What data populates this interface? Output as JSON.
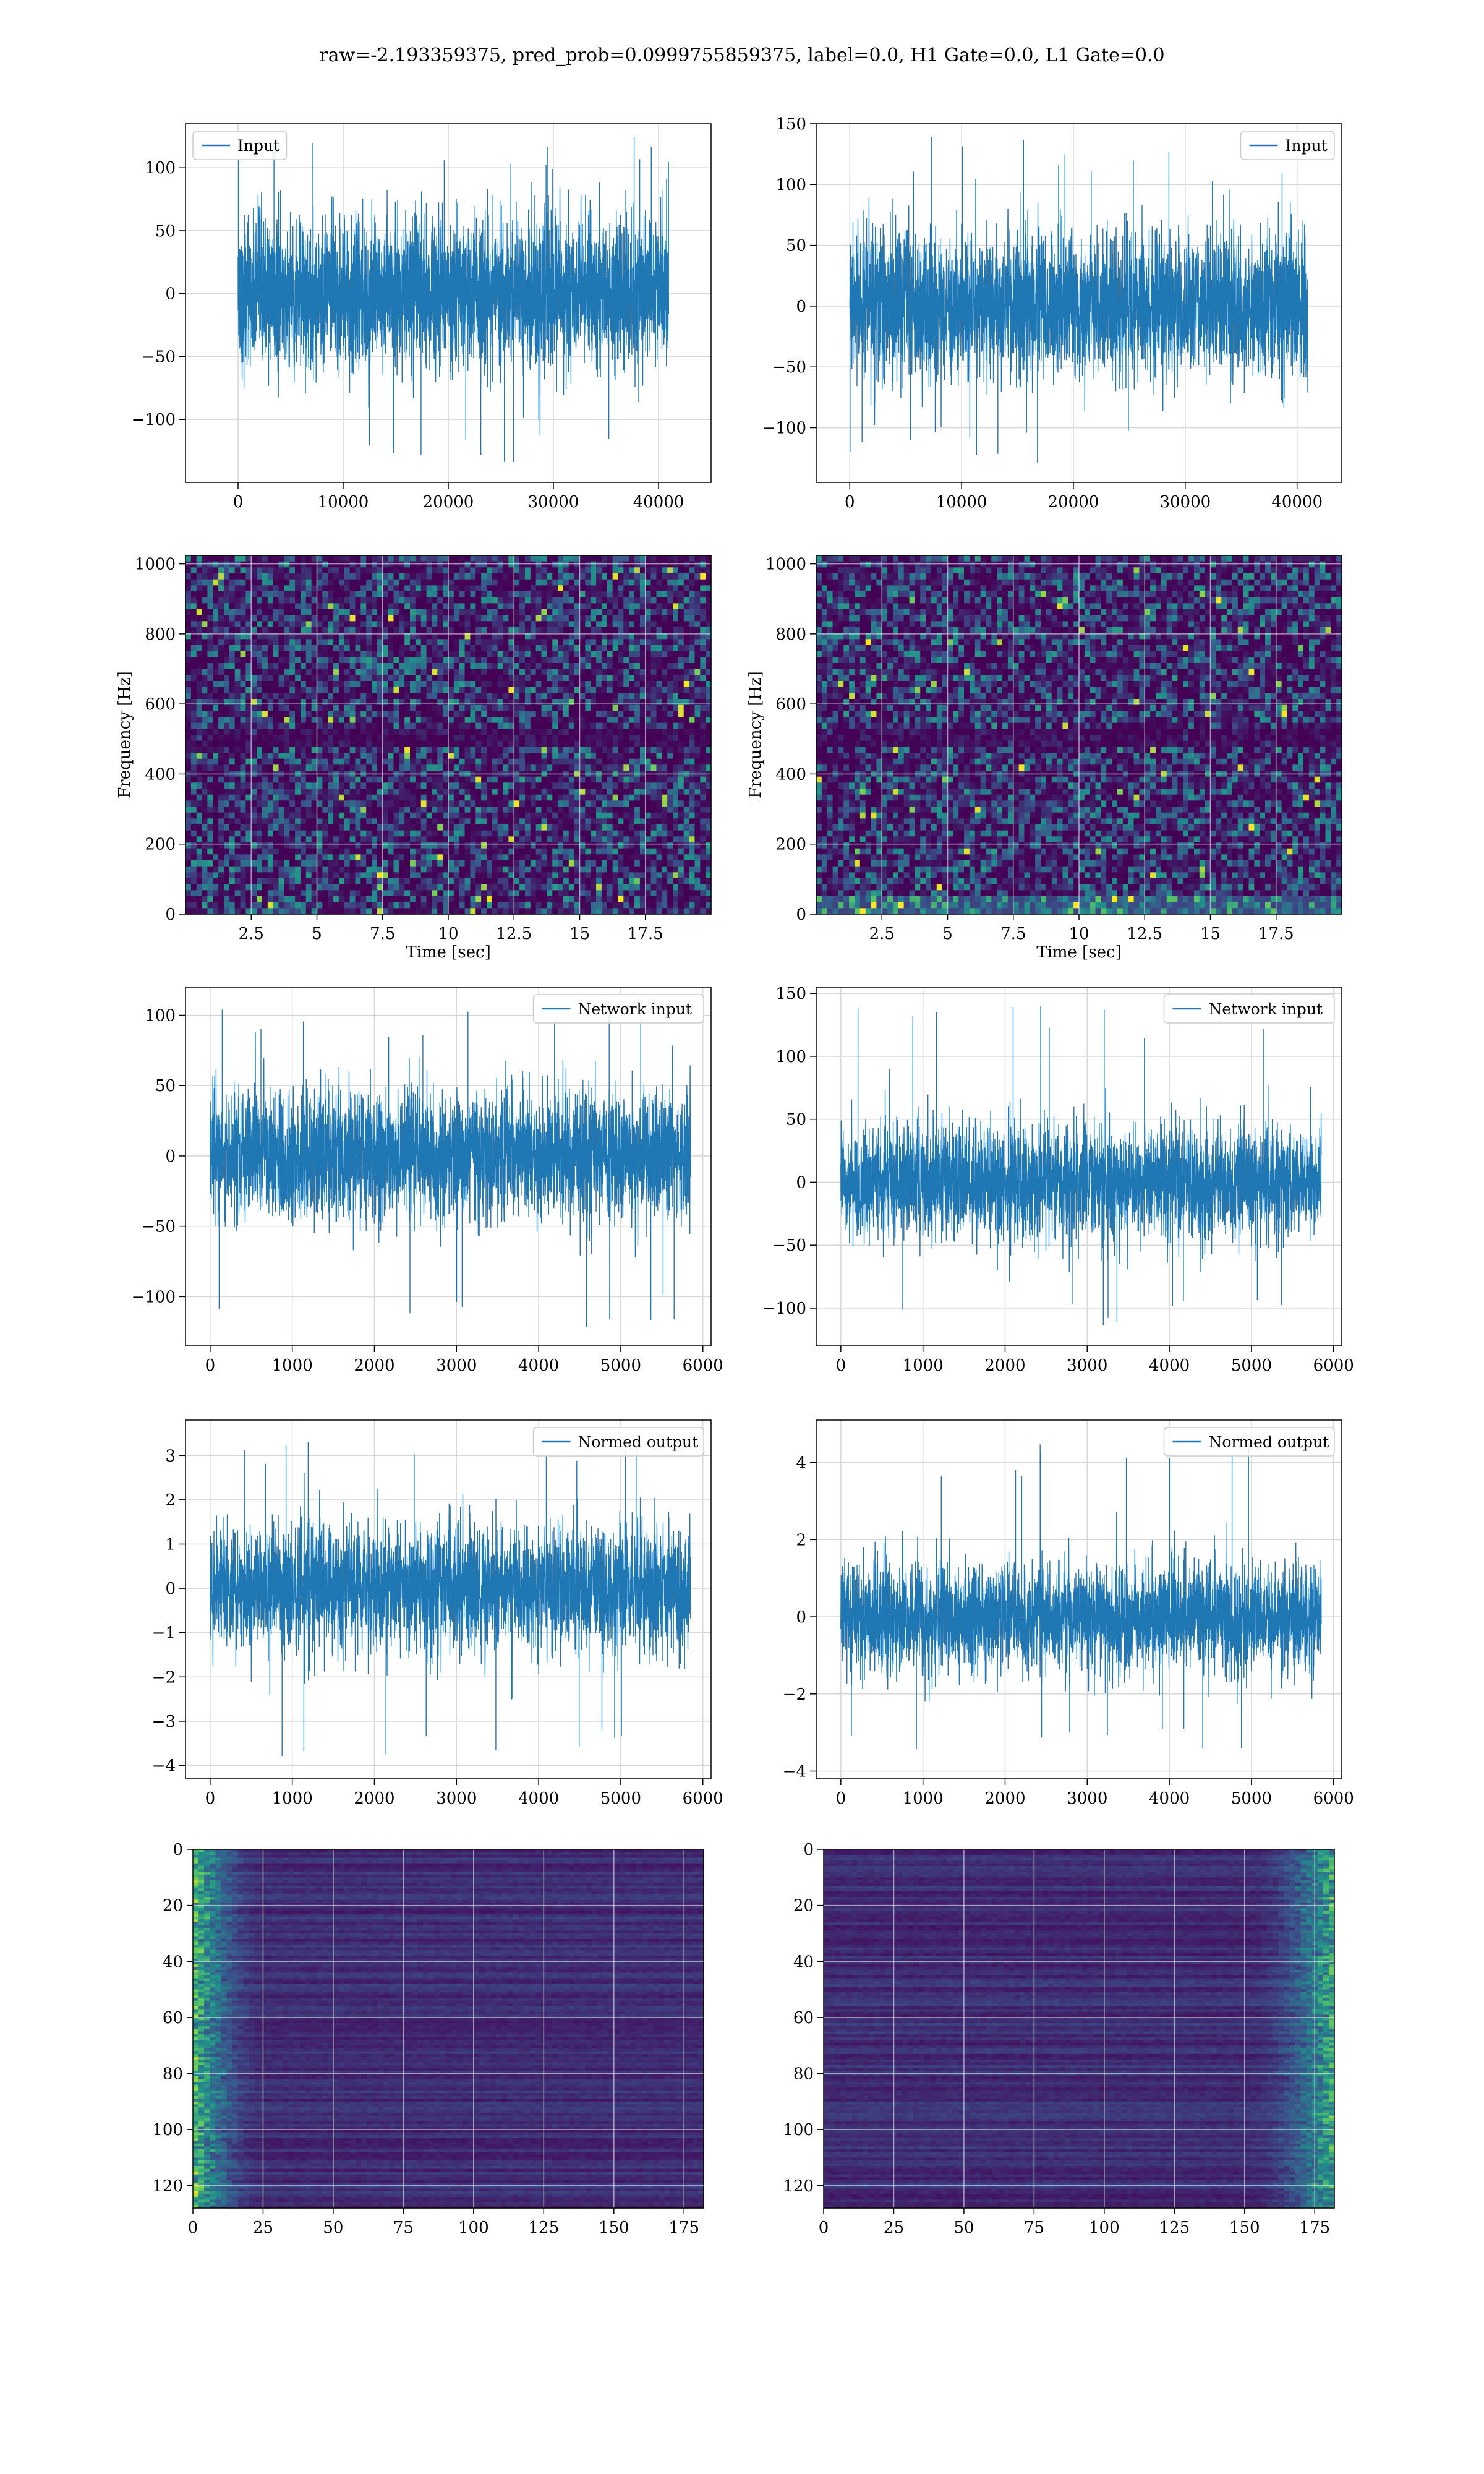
{
  "title": "raw=-2.193359375, pred_prob=0.0999755859375, label=0.0, H1 Gate=0.0, L1 Gate=0.0",
  "colors": {
    "line": "#1f77b4",
    "grid": "#d9d9d9",
    "heat_low": "#440154",
    "heat_high": "#fde725"
  },
  "chart_data": [
    {
      "type": "line",
      "xlabel": "",
      "ylabel": "",
      "legend": "upper-left",
      "series": [
        {
          "name": "Input"
        }
      ],
      "xlim": [
        -5000,
        45000
      ],
      "ylim": [
        -150,
        135
      ],
      "xticks": [
        0,
        10000,
        20000,
        30000,
        40000
      ],
      "yticks": [
        -100,
        -50,
        0,
        50,
        100
      ],
      "n_samples": 40960,
      "envelope": [
        -60,
        60
      ],
      "spikes": [
        -134,
        125
      ]
    },
    {
      "type": "line",
      "xlabel": "",
      "ylabel": "",
      "legend": "upper-right",
      "series": [
        {
          "name": "Input"
        }
      ],
      "xlim": [
        -3000,
        44000
      ],
      "ylim": [
        -145,
        150
      ],
      "xticks": [
        0,
        10000,
        20000,
        30000,
        40000
      ],
      "yticks": [
        -100,
        -50,
        0,
        50,
        100,
        150
      ],
      "n_samples": 40960,
      "envelope": [
        -60,
        60
      ],
      "spikes": [
        -130,
        140
      ]
    },
    {
      "type": "heatmap",
      "xlabel": "Time [sec]",
      "ylabel": "Frequency [Hz]",
      "xlim": [
        0,
        20
      ],
      "ylim": [
        0,
        1024
      ],
      "xticks": [
        2.5,
        5.0,
        7.5,
        10.0,
        12.5,
        15.0,
        17.5
      ],
      "yticks": [
        0,
        200,
        400,
        600,
        800,
        1000
      ]
    },
    {
      "type": "heatmap",
      "xlabel": "Time [sec]",
      "ylabel": "Frequency [Hz]",
      "xlim": [
        0,
        20
      ],
      "ylim": [
        0,
        1024
      ],
      "xticks": [
        2.5,
        5.0,
        7.5,
        10.0,
        12.5,
        15.0,
        17.5
      ],
      "yticks": [
        0,
        200,
        400,
        600,
        800,
        1000
      ]
    },
    {
      "type": "line",
      "xlabel": "",
      "ylabel": "",
      "legend": "upper-right",
      "series": [
        {
          "name": "Network input"
        }
      ],
      "xlim": [
        -300,
        6100
      ],
      "ylim": [
        -135,
        120
      ],
      "xticks": [
        0,
        1000,
        2000,
        3000,
        4000,
        5000,
        6000
      ],
      "yticks": [
        -100,
        -50,
        0,
        50,
        100
      ],
      "n_samples": 5850,
      "envelope": [
        -45,
        45
      ],
      "spikes": [
        -125,
        107
      ]
    },
    {
      "type": "line",
      "xlabel": "",
      "ylabel": "",
      "legend": "upper-right",
      "series": [
        {
          "name": "Network input"
        }
      ],
      "xlim": [
        -300,
        6100
      ],
      "ylim": [
        -130,
        155
      ],
      "xticks": [
        0,
        1000,
        2000,
        3000,
        4000,
        5000,
        6000
      ],
      "yticks": [
        -100,
        -50,
        0,
        50,
        100,
        150
      ],
      "n_samples": 5850,
      "envelope": [
        -45,
        45
      ],
      "spikes": [
        -115,
        145
      ]
    },
    {
      "type": "line",
      "xlabel": "",
      "ylabel": "",
      "legend": "upper-right",
      "series": [
        {
          "name": "Normed output"
        }
      ],
      "xlim": [
        -300,
        6100
      ],
      "ylim": [
        -4.3,
        3.8
      ],
      "xticks": [
        0,
        1000,
        2000,
        3000,
        4000,
        5000,
        6000
      ],
      "yticks": [
        -4,
        -3,
        -2,
        -1,
        0,
        1,
        2,
        3
      ],
      "n_samples": 5850,
      "envelope": [
        -1.4,
        1.4
      ],
      "spikes": [
        -3.9,
        3.4
      ]
    },
    {
      "type": "line",
      "xlabel": "",
      "ylabel": "",
      "legend": "upper-right",
      "series": [
        {
          "name": "Normed output"
        }
      ],
      "xlim": [
        -300,
        6100
      ],
      "ylim": [
        -4.2,
        5.1
      ],
      "xticks": [
        0,
        1000,
        2000,
        3000,
        4000,
        5000,
        6000
      ],
      "yticks": [
        -4,
        -2,
        0,
        2,
        4
      ],
      "n_samples": 5850,
      "envelope": [
        -1.4,
        1.4
      ],
      "spikes": [
        -3.6,
        4.6
      ]
    },
    {
      "type": "heatmap",
      "xlabel": "",
      "ylabel": "",
      "xlim": [
        0,
        182
      ],
      "ylim": [
        128,
        0
      ],
      "xticks": [
        0,
        25,
        50,
        75,
        100,
        125,
        150,
        175
      ],
      "yticks": [
        0,
        20,
        40,
        60,
        80,
        100,
        120
      ],
      "highlight_cols": [
        0,
        25
      ]
    },
    {
      "type": "heatmap",
      "xlabel": "",
      "ylabel": "",
      "xlim": [
        0,
        182
      ],
      "ylim": [
        128,
        0
      ],
      "xticks": [
        0,
        25,
        50,
        75,
        100,
        125,
        150,
        175
      ],
      "yticks": [
        0,
        20,
        40,
        60,
        80,
        100,
        120
      ],
      "highlight_cols": [
        150,
        182
      ]
    }
  ]
}
